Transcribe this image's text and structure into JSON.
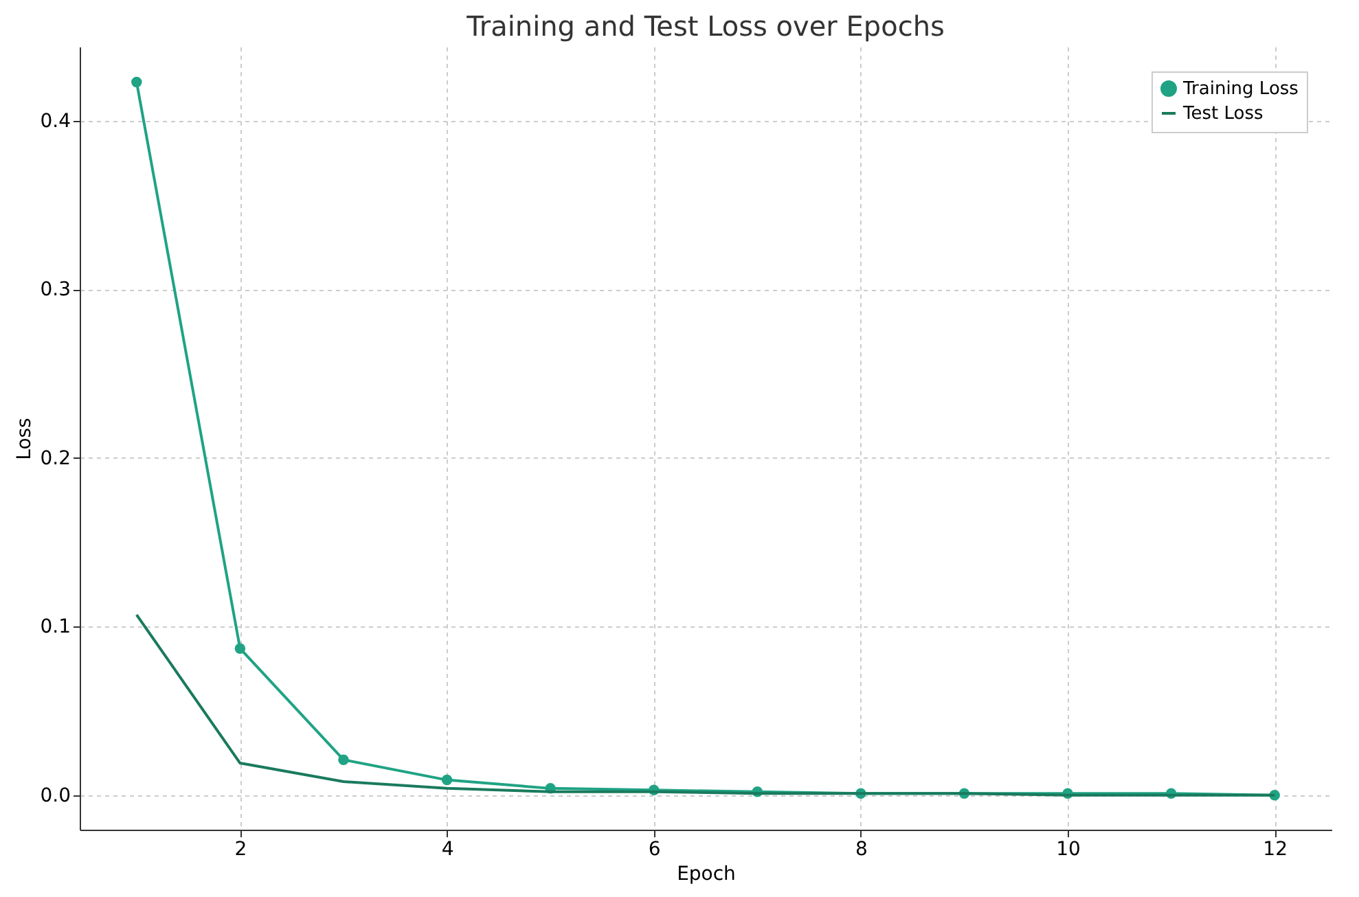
{
  "chart_data": {
    "type": "line",
    "title": "Training and Test Loss over Epochs",
    "xlabel": "Epoch",
    "ylabel": "Loss",
    "x": [
      1,
      2,
      3,
      4,
      5,
      6,
      7,
      8,
      9,
      10,
      11,
      12
    ],
    "series": [
      {
        "name": "Training Loss",
        "color": "#1fa384",
        "marker": "circle",
        "values": [
          0.423,
          0.087,
          0.021,
          0.009,
          0.004,
          0.003,
          0.002,
          0.001,
          0.001,
          0.001,
          0.001,
          0.0
        ]
      },
      {
        "name": "Test Loss",
        "color": "#1a7a5e",
        "marker": "none",
        "values": [
          0.107,
          0.019,
          0.008,
          0.004,
          0.002,
          0.002,
          0.001,
          0.001,
          0.001,
          0.0,
          0.0,
          0.0
        ]
      }
    ],
    "xlim": [
      0.45,
      12.55
    ],
    "xticks": [
      2,
      4,
      6,
      8,
      10,
      12
    ],
    "ylim": [
      -0.0205,
      0.444
    ],
    "yticks": [
      {
        "value": 0,
        "label": "0.0"
      },
      {
        "value": 0.1,
        "label": "0.1"
      },
      {
        "value": 0.2,
        "label": "0.2"
      },
      {
        "value": 0.3,
        "label": "0.3"
      },
      {
        "value": 0.4,
        "label": "0.4"
      }
    ],
    "grid": true,
    "legend": "top right",
    "line_style": "solid"
  }
}
